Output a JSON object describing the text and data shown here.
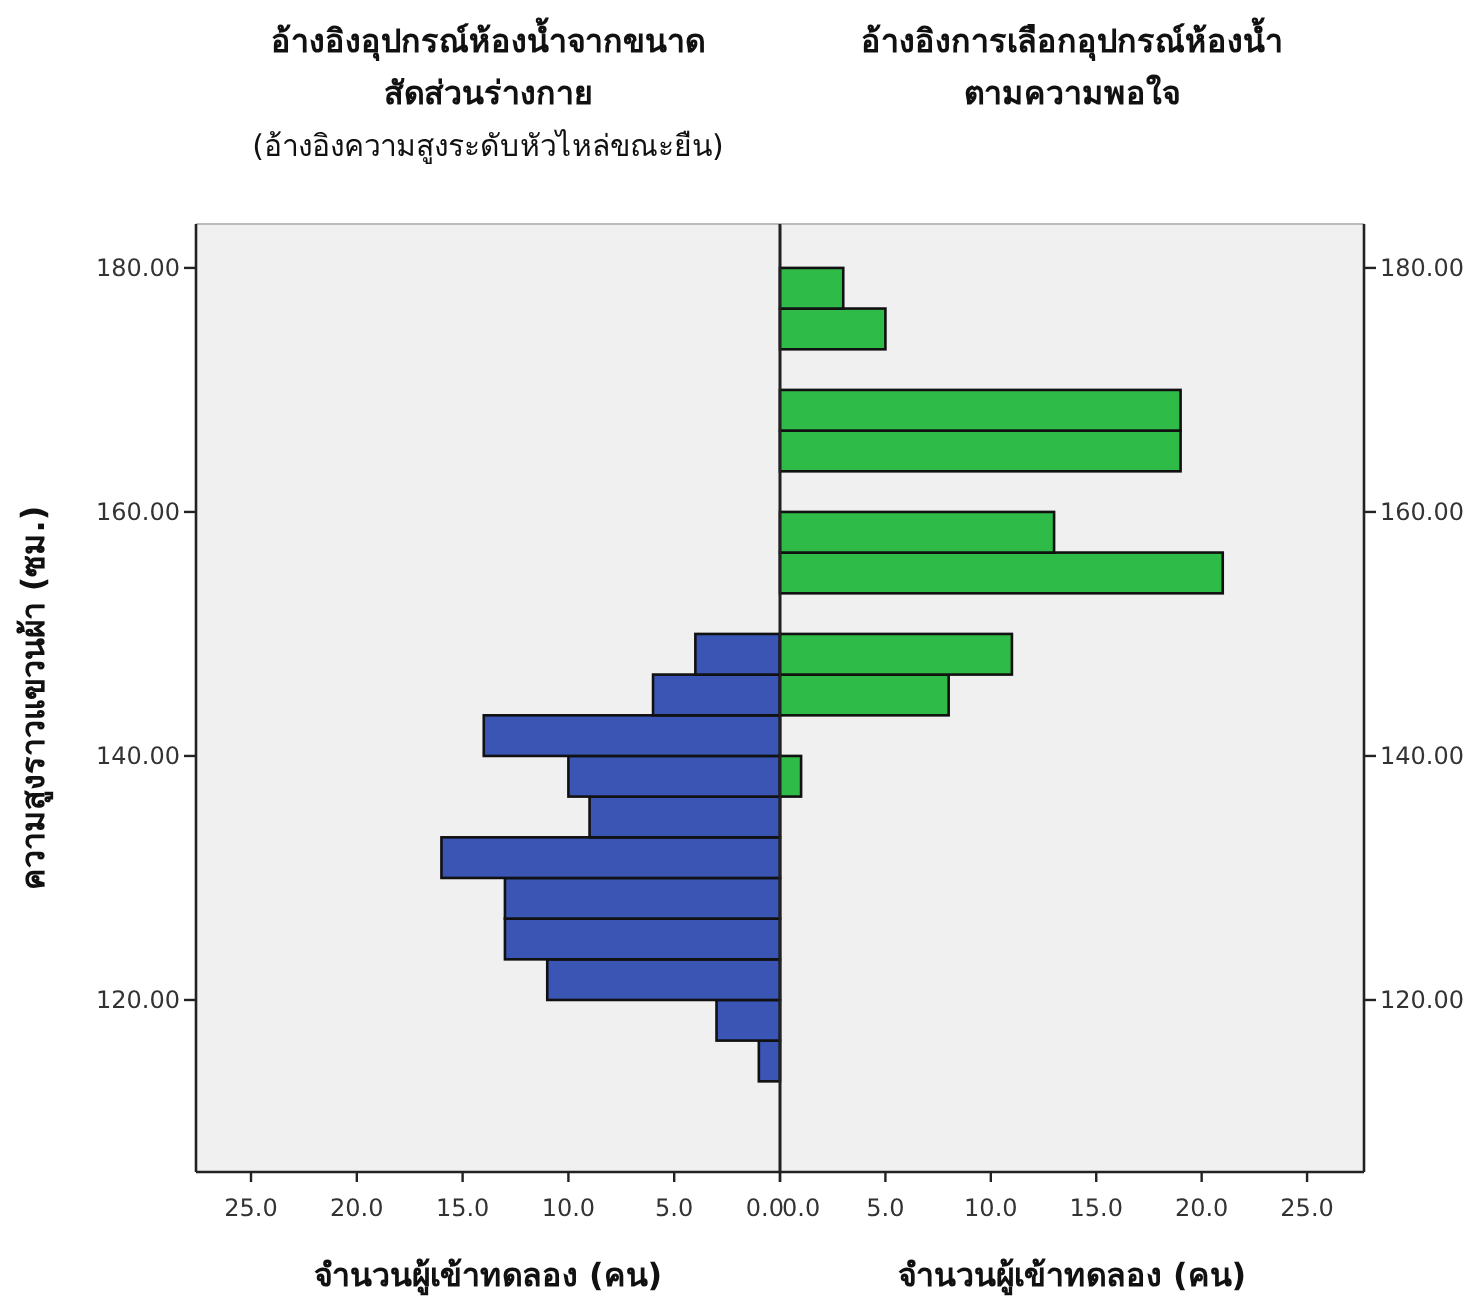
{
  "chart_data": [
    {
      "type": "histogram",
      "orientation": "horizontal",
      "title": "อ้างอิงอุปกรณ์ห้องน้ำจากขนาดสัดส่วนร่างกาย",
      "subtitle": "(อ้างอิงความสูงระดับหัวไหล่ขณะยืน)",
      "xlabel": "จำนวนผู้เข้าทดลอง (คน)",
      "ylabel": "ความสูงราวแขวนผ้า (ซม.)",
      "color": "#3a55b4",
      "bins": [
        113.33,
        116.67,
        120,
        123.33,
        126.67,
        130,
        133.33,
        136.67,
        140,
        143.33,
        146.67,
        150
      ],
      "values": [
        1,
        3,
        11,
        13,
        13,
        16,
        9,
        10,
        14,
        6,
        4
      ],
      "xlim": [
        27.6,
        0
      ],
      "ylim": [
        105.9,
        183.6
      ],
      "xticks": [
        {
          "value": 25,
          "label": "25.0"
        },
        {
          "value": 20,
          "label": "20.0"
        },
        {
          "value": 15,
          "label": "15.0"
        },
        {
          "value": 10,
          "label": "10.0"
        },
        {
          "value": 5,
          "label": "5.0"
        },
        {
          "value": 0,
          "label": "0.0"
        }
      ],
      "yticks": [
        {
          "value": 120,
          "label": "120.00"
        },
        {
          "value": 140,
          "label": "140.00"
        },
        {
          "value": 160,
          "label": "160.00"
        },
        {
          "value": 180,
          "label": "180.00"
        }
      ]
    },
    {
      "type": "histogram",
      "orientation": "horizontal",
      "title": "อ้างอิงการเลือกอุปกรณ์ห้องน้ำตามความพอใจ",
      "xlabel": "จำนวนผู้เข้าทดลอง (คน)",
      "color": "#2fbb47",
      "bins": [
        136.67,
        140,
        143.33,
        146.67,
        150,
        153.33,
        156.67,
        160,
        163.33,
        166.67,
        170,
        173.33,
        176.67,
        180
      ],
      "values": [
        1,
        0,
        8,
        11,
        0,
        21,
        13,
        0,
        19,
        19,
        0,
        5,
        3
      ],
      "xlim": [
        0,
        27.7
      ],
      "ylim": [
        105.9,
        183.6
      ],
      "xticks": [
        {
          "value": 0,
          "label": "0.0"
        },
        {
          "value": 5,
          "label": "5.0"
        },
        {
          "value": 10,
          "label": "10.0"
        },
        {
          "value": 15,
          "label": "15.0"
        },
        {
          "value": 20,
          "label": "20.0"
        },
        {
          "value": 25,
          "label": "25.0"
        }
      ],
      "yticks": [
        {
          "value": 120,
          "label": "120.00"
        },
        {
          "value": 140,
          "label": "140.00"
        },
        {
          "value": 160,
          "label": "160.00"
        },
        {
          "value": 180,
          "label": "180.00"
        }
      ]
    }
  ]
}
